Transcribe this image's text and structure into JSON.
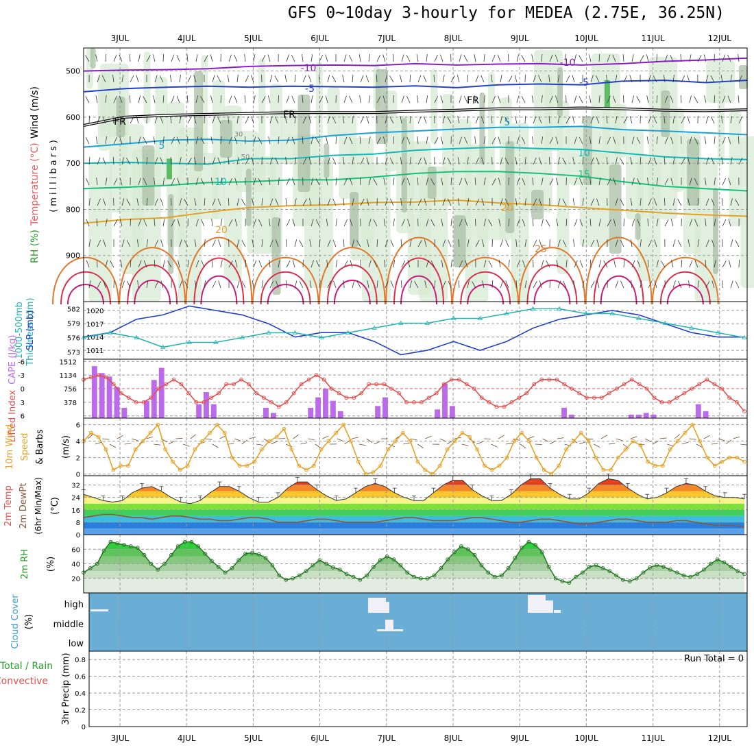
{
  "title": "GFS 0~10day 3-hourly for MEDEA (2.75E, 36.25N)",
  "chart_data": {
    "type": "meteogram",
    "dates": [
      "3JUL",
      "4JUL",
      "5JUL",
      "6JUL",
      "7JUL",
      "8JUL",
      "9JUL",
      "10JUL",
      "11JUL",
      "12JUL"
    ],
    "run_total_label": "Run Total = 0",
    "panels": {
      "upper_air": {
        "type": "line",
        "ylabel_parts": [
          "RH (%)",
          "Temperature (°C)",
          "Wind (m/s)"
        ],
        "ylabel2": "(millibars)",
        "yticks": [
          500,
          600,
          700,
          800,
          900
        ],
        "ylim": [
          1000,
          450
        ],
        "contour_labels": [
          "-10",
          "-5",
          "FR",
          "5",
          "10",
          "15",
          "20",
          "25",
          "30",
          "50"
        ],
        "isotherms": [
          {
            "label": "-10",
            "color": "#8a1cc9",
            "levels": [
              500,
              498,
              497,
              495,
              490,
              488,
              487,
              488,
              484,
              487,
              485,
              484,
              487,
              484,
              479,
              476,
              472
            ]
          },
          {
            "label": "-5",
            "color": "#2340c8",
            "levels": [
              545,
              538,
              535,
              533,
              535,
              533,
              534,
              535,
              532,
              536,
              530,
              528,
              530,
              522,
              520,
              525,
              520
            ]
          },
          {
            "label": "FR",
            "color": "#000000",
            "levels": [
              618,
              600,
              596,
              594,
              592,
              590,
              590,
              590,
              587,
              585,
              582,
              582,
              580,
              582,
              585,
              586,
              584
            ]
          },
          {
            "label": "5",
            "color": "#1aa0d6",
            "levels": [
              665,
              658,
              650,
              648,
              652,
              650,
              640,
              634,
              630,
              626,
              622,
              622,
              620,
              627,
              630,
              634,
              638
            ]
          },
          {
            "label": "10",
            "color": "#13b8b8",
            "levels": [
              700,
              698,
              700,
              702,
              690,
              690,
              683,
              680,
              672,
              668,
              665,
              668,
              670,
              678,
              686,
              690,
              692
            ]
          },
          {
            "label": "15",
            "color": "#16c07a",
            "levels": [
              755,
              752,
              748,
              742,
              740,
              736,
              736,
              730,
              722,
              718,
              718,
              722,
              728,
              740,
              750,
              755,
              760
            ]
          },
          {
            "label": "20",
            "color": "#e5a124",
            "levels": [
              830,
              822,
              818,
              806,
              796,
              792,
              790,
              785,
              784,
              780,
              786,
              790,
              796,
              802,
              808,
              812,
              815
            ]
          }
        ]
      },
      "sfc_pressure": {
        "type": "line",
        "ylabel_parts": [
          "1000-500mb",
          "Thickness (dm)",
          "SLP (mb)"
        ],
        "yticks_left": [
          582,
          579,
          576,
          573
        ],
        "yticks_right": [
          1020,
          1017,
          1014,
          1011
        ],
        "slp": [
          1014,
          1015,
          1018,
          1019,
          1021,
          1020,
          1019,
          1017,
          1014,
          1015,
          1015,
          1013,
          1010,
          1011,
          1013,
          1011,
          1013,
          1016,
          1018,
          1019,
          1020,
          1019,
          1017,
          1015,
          1014,
          1014
        ],
        "thickness": [
          576,
          577,
          576,
          574,
          575,
          575,
          576,
          577,
          577,
          576,
          577,
          578,
          579,
          579,
          580,
          580,
          581,
          582,
          582,
          581,
          581,
          580,
          579,
          578,
          577,
          576
        ]
      },
      "instability": {
        "type": "bar",
        "ylabel_parts": [
          "Lifted Index",
          "CAPE (J/kg)"
        ],
        "yticks_left": [
          "-6",
          "-3",
          "0",
          "3",
          "6"
        ],
        "yticks_right": [
          "1512",
          "1134",
          "756",
          "378"
        ],
        "cape": [
          0,
          1500,
          1300,
          1200,
          900,
          300,
          0,
          0,
          500,
          1100,
          1450,
          0,
          0,
          0,
          0,
          400,
          750,
          400,
          0,
          0,
          0,
          0,
          0,
          0,
          300,
          150,
          0,
          0,
          0,
          0,
          300,
          600,
          850,
          500,
          200,
          0,
          0,
          0,
          0,
          350,
          600,
          0,
          0,
          0,
          0,
          0,
          0,
          250,
          1000,
          350,
          0,
          0,
          0,
          0,
          0,
          0,
          0,
          0,
          0,
          0,
          0,
          0,
          0,
          0,
          300,
          100,
          0,
          0,
          0,
          0,
          0,
          0,
          0,
          100,
          100,
          150,
          100,
          0,
          0,
          0,
          0,
          0,
          400,
          200,
          0,
          0,
          0,
          0,
          0
        ],
        "lifted_index": [
          -2,
          -2.5,
          -3,
          -2.5,
          -1,
          1,
          2,
          3,
          3,
          2,
          0,
          -1,
          -2,
          -1,
          1,
          3,
          3,
          2,
          1,
          -1,
          -1,
          -2,
          -1,
          1,
          2,
          3,
          4,
          3,
          1,
          -1,
          -2,
          -3,
          -2,
          0,
          1,
          2,
          2,
          1,
          -1,
          -1,
          -1,
          0,
          1,
          3,
          3,
          3,
          2,
          1,
          -1,
          -2,
          -2,
          -1,
          0,
          2,
          3,
          4,
          4,
          3,
          2,
          1,
          -1,
          -2,
          -2,
          -2,
          -1,
          0,
          1,
          2,
          2,
          2,
          1,
          0,
          -1,
          -2,
          -1,
          0,
          2,
          3,
          3,
          2,
          1,
          0,
          -1,
          -2,
          -1,
          0,
          2,
          3,
          5
        ]
      },
      "wind10m": {
        "type": "line",
        "ylabel_parts": [
          "10m Wind",
          "Speed",
          "& Barbs",
          "(m/s)"
        ],
        "yticks": [
          6,
          4,
          2,
          0
        ],
        "speed": [
          4,
          5,
          4.5,
          3,
          0.5,
          1,
          1,
          3,
          4,
          5,
          6,
          3,
          1.5,
          0.5,
          1,
          3,
          4,
          5,
          6,
          5,
          2,
          1,
          1,
          1.5,
          3,
          4,
          4.5,
          5.5,
          3,
          1,
          0.5,
          1,
          3,
          4,
          5,
          6,
          4,
          1.5,
          0,
          0.2,
          1,
          3,
          4,
          5,
          4,
          1.5,
          0.5,
          0,
          1,
          3,
          4,
          5,
          4.5,
          3,
          1,
          0.5,
          1,
          2,
          4,
          5,
          4,
          2,
          0.5,
          0,
          1,
          3,
          4,
          5,
          4,
          2,
          0.5,
          0.5,
          2,
          3,
          4,
          3.5,
          1.5,
          1,
          1,
          3,
          4,
          5,
          6,
          4,
          2,
          1,
          1.5,
          2,
          2,
          1.5
        ]
      },
      "temperature": {
        "type": "area",
        "ylabel_parts": [
          "2m Temp",
          "2m DewPt",
          "(6hr Min/Max)",
          "(°C)"
        ],
        "yticks": [
          32,
          24,
          16,
          8,
          0
        ],
        "temp": [
          26,
          24,
          22,
          21,
          22,
          27,
          30,
          31,
          28,
          24,
          21,
          20,
          22,
          27,
          31,
          31,
          28,
          24,
          21,
          21,
          24,
          30,
          34,
          34,
          29,
          25,
          22,
          23,
          27,
          31,
          33,
          31,
          27,
          24,
          22,
          22,
          27,
          32,
          35,
          35,
          29,
          25,
          22,
          22,
          26,
          32,
          36,
          36,
          30,
          26,
          23,
          23,
          27,
          33,
          36,
          35,
          30,
          26,
          23,
          24,
          27,
          31,
          33,
          32,
          28,
          25,
          24,
          24,
          23
        ],
        "dewpt": [
          11,
          12,
          13,
          13,
          12,
          11,
          11,
          10,
          11,
          12,
          12,
          11,
          10,
          10,
          9,
          9,
          10,
          11,
          11,
          10,
          8,
          8,
          8,
          9,
          10,
          10,
          9,
          8,
          8,
          8,
          8,
          9,
          10,
          11,
          11,
          10,
          9,
          9,
          9,
          10,
          11,
          11,
          10,
          9,
          8,
          8,
          9,
          10,
          10,
          9,
          8,
          7,
          7,
          8,
          9,
          10,
          10,
          9,
          8,
          8,
          8,
          9,
          9,
          8,
          7,
          6,
          6,
          6,
          5
        ]
      },
      "rh2m": {
        "type": "area",
        "ylabel_parts": [
          "2m RH",
          "(%)"
        ],
        "yticks": [
          60,
          40,
          20
        ],
        "rh": [
          28,
          34,
          40,
          58,
          70,
          68,
          66,
          64,
          62,
          52,
          40,
          32,
          40,
          52,
          64,
          70,
          70,
          64,
          54,
          44,
          36,
          28,
          34,
          45,
          54,
          55,
          53,
          48,
          38,
          24,
          18,
          20,
          24,
          30,
          38,
          45,
          40,
          35,
          32,
          26,
          22,
          18,
          24,
          36,
          45,
          50,
          46,
          38,
          28,
          22,
          20,
          20,
          24,
          34,
          46,
          56,
          64,
          60,
          52,
          38,
          28,
          22,
          24,
          34,
          48,
          62,
          70,
          66,
          56,
          36,
          20,
          16,
          14,
          22,
          28,
          36,
          38,
          34,
          30,
          24,
          18,
          16,
          20,
          28,
          35,
          38,
          36,
          32,
          28,
          24,
          22,
          26,
          32,
          40,
          46,
          42,
          36,
          30,
          26
        ]
      },
      "cloud_cover": {
        "type": "bar",
        "ylabel_parts": [
          "Cloud Cover",
          "(%)"
        ],
        "levels": [
          "high",
          "middle",
          "low"
        ]
      },
      "precip": {
        "type": "bar",
        "ylabel_parts": [
          "Total / Rain",
          "Convective",
          "3hr Precip (mm)"
        ],
        "yticks": [
          "0.8",
          "0.6",
          "0.4",
          "0.2",
          "0"
        ],
        "ylim": [
          0,
          0.9
        ],
        "values": []
      }
    }
  }
}
